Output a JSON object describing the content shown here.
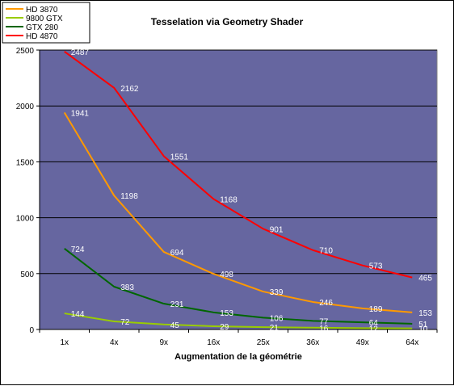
{
  "chart_data": {
    "type": "line",
    "title": "Tesselation via Geometry Shader",
    "xlabel": "Augmentation de la géométrie",
    "ylabel": "",
    "ylim": [
      0,
      2500
    ],
    "yticks": [
      0,
      500,
      1000,
      1500,
      2000,
      2500
    ],
    "categories": [
      "1x",
      "4x",
      "9x",
      "16x",
      "25x",
      "36x",
      "49x",
      "64x"
    ],
    "grid": true,
    "legend_position": "top-left",
    "plot_background": "#6666a0",
    "series": [
      {
        "name": "HD 3870",
        "color": "#ff9900",
        "values": [
          1941,
          1198,
          694,
          498,
          339,
          246,
          189,
          153
        ]
      },
      {
        "name": "9800 GTX",
        "color": "#99cc00",
        "values": [
          144,
          72,
          45,
          29,
          21,
          16,
          12,
          10
        ]
      },
      {
        "name": "GTX 280",
        "color": "#006600",
        "values": [
          724,
          383,
          231,
          153,
          106,
          77,
          64,
          51
        ]
      },
      {
        "name": "HD 4870",
        "color": "#ff0000",
        "values": [
          2487,
          2162,
          1551,
          1168,
          901,
          710,
          573,
          465
        ]
      }
    ]
  }
}
